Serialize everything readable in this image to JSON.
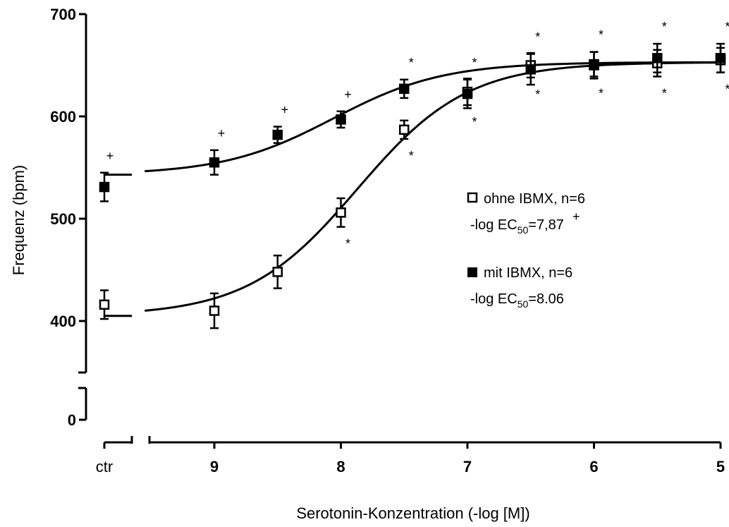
{
  "chart_data": {
    "type": "scatter",
    "ylabel": "Frequenz (bpm)",
    "xlabel": "Serotonin-Konzentration (-log [M])",
    "x_reversed": true,
    "ylim": [
      400,
      700
    ],
    "y_ticks": [
      400,
      500,
      600,
      700
    ],
    "y_break": {
      "lower_tick": 0
    },
    "x_ticks": [
      9,
      8,
      7,
      6,
      5
    ],
    "control_label": "ctr",
    "series": [
      {
        "name": "ohne IBMX, n=6",
        "ec50_prefix": "-log EC",
        "ec50_sub": "50",
        "ec50_value": "=7,87",
        "ec50_mark": "+",
        "marker": "open-square",
        "control": {
          "y": 416,
          "err": 14
        },
        "x": [
          9,
          8.5,
          8,
          7.5,
          7,
          6.5,
          6,
          5.5,
          5
        ],
        "y": [
          410,
          448,
          506,
          587,
          624,
          650,
          651,
          652,
          655
        ],
        "err": [
          17,
          16,
          14,
          9,
          13,
          12,
          12,
          13,
          12
        ],
        "fit": {
          "bottom": 405,
          "top": 653,
          "logEC50": 7.87
        },
        "annotations": [
          {
            "x": 8,
            "label": "*",
            "pos": "below"
          },
          {
            "x": 7.5,
            "label": "*",
            "pos": "below"
          },
          {
            "x": 7,
            "label": "*",
            "pos": "below"
          },
          {
            "x": 6.5,
            "label": "*",
            "pos": "below"
          },
          {
            "x": 6,
            "label": "*",
            "pos": "below"
          },
          {
            "x": 5.5,
            "label": "*",
            "pos": "below"
          },
          {
            "x": 5,
            "label": "*",
            "pos": "below"
          }
        ]
      },
      {
        "name": "mit IBMX, n=6",
        "ec50_prefix": "-log EC",
        "ec50_sub": "50",
        "ec50_value": "=8.06",
        "ec50_mark": "",
        "marker": "filled-square",
        "control": {
          "y": 531,
          "err": 14
        },
        "x": [
          9,
          8.5,
          8,
          7.5,
          7,
          6.5,
          6,
          5.5,
          5
        ],
        "y": [
          555,
          582,
          597,
          627,
          622,
          646,
          650,
          657,
          657
        ],
        "err": [
          12,
          8,
          8,
          9,
          14,
          15,
          13,
          14,
          14
        ],
        "fit": {
          "bottom": 543,
          "top": 653,
          "logEC50": 8.06
        },
        "annotations": [
          {
            "x": "ctr",
            "label": "+",
            "pos": "above"
          },
          {
            "x": 9,
            "label": "+",
            "pos": "above"
          },
          {
            "x": 8.5,
            "label": "+",
            "pos": "above"
          },
          {
            "x": 8,
            "label": "+",
            "pos": "above"
          },
          {
            "x": 7.5,
            "label": "*",
            "pos": "above"
          },
          {
            "x": 7,
            "label": "*",
            "pos": "above"
          },
          {
            "x": 6.5,
            "label": "*",
            "pos": "above"
          },
          {
            "x": 6,
            "label": "*",
            "pos": "above"
          },
          {
            "x": 5.5,
            "label": "*",
            "pos": "above"
          },
          {
            "x": 5,
            "label": "*",
            "pos": "above"
          }
        ]
      }
    ]
  }
}
